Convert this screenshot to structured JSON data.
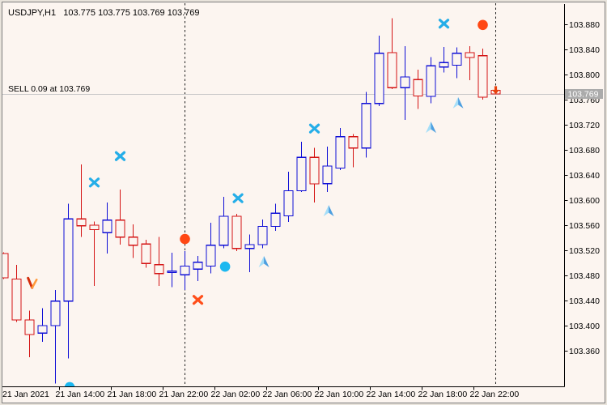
{
  "window": {
    "title_label": "USDJPY,H1   103.775 103.775 103.769 103.769",
    "position_label": "SELL 0.09 at 103.769"
  },
  "colors": {
    "background": "#FCF5F0",
    "chrome": "#E8E3DB",
    "border_dark": "#7E7E7E",
    "bull": "#0E0ED6",
    "bear": "#D41414",
    "axis": "#000000",
    "separator": "#1A1A1A",
    "price_line": "#C8C8C8",
    "price_tag_bg": "#ABABAB",
    "price_tag_text": "#FFFFFF",
    "cross_cyan": "#25AEE8",
    "cross_orange": "#FF4E1A",
    "dot_orange": "#FF4713",
    "dot_cyan": "#1CB8F0",
    "arrow_up_light": "#A5DEF8",
    "arrow_up_dark": "#4D9FE0",
    "sell_v_left": "#D22C0A",
    "sell_v_right": "#FF9A3C",
    "arrow_down_orange": "#E8410C"
  },
  "chart_data": {
    "type": "candlestick",
    "symbol": "USDJPY",
    "timeframe": "H1",
    "current_bar": {
      "open": 103.775,
      "high": 103.775,
      "low": 103.769,
      "close": 103.769
    },
    "price_line": {
      "price": 103.769,
      "label": "103.769"
    },
    "y_axis": {
      "labels": [
        103.88,
        103.84,
        103.8,
        103.76,
        103.72,
        103.68,
        103.64,
        103.6,
        103.56,
        103.52,
        103.48,
        103.44,
        103.4,
        103.36
      ]
    },
    "x_axis": [
      {
        "text": "21 Jan 2021",
        "candle": 0,
        "edge": true
      },
      {
        "text": "21 Jan 14:00",
        "candle": 4
      },
      {
        "text": "21 Jan 18:00",
        "candle": 8
      },
      {
        "text": "21 Jan 22:00",
        "candle": 12
      },
      {
        "text": "22 Jan 02:00",
        "candle": 16
      },
      {
        "text": "22 Jan 06:00",
        "candle": 20
      },
      {
        "text": "22 Jan 10:00",
        "candle": 24
      },
      {
        "text": "22 Jan 14:00",
        "candle": 28
      },
      {
        "text": "22 Jan 18:00",
        "candle": 32
      },
      {
        "text": "22 Jan 22:00",
        "candle": 36
      }
    ],
    "day_separators": [
      {
        "time": "22 Jan 00:00",
        "candle": 14
      },
      {
        "time": "23 Jan 00:00",
        "candle": 38
      }
    ],
    "candles": [
      {
        "t": "21 Jan 10:00",
        "o": 103.515,
        "h": 103.517,
        "l": 103.474,
        "c": 103.476
      },
      {
        "t": "21 Jan 11:00",
        "o": 103.474,
        "h": 103.497,
        "l": 103.406,
        "c": 103.409
      },
      {
        "t": "21 Jan 12:00",
        "o": 103.409,
        "h": 103.424,
        "l": 103.35,
        "c": 103.386
      },
      {
        "t": "21 Jan 13:00",
        "o": 103.388,
        "h": 103.428,
        "l": 103.374,
        "c": 103.4
      },
      {
        "t": "21 Jan 14:00",
        "o": 103.4,
        "h": 103.457,
        "l": 103.308,
        "c": 103.439
      },
      {
        "t": "21 Jan 15:00",
        "o": 103.439,
        "h": 103.594,
        "l": 103.348,
        "c": 103.57
      },
      {
        "t": "21 Jan 16:00",
        "o": 103.57,
        "h": 103.657,
        "l": 103.541,
        "c": 103.559
      },
      {
        "t": "21 Jan 17:00",
        "o": 103.56,
        "h": 103.566,
        "l": 103.463,
        "c": 103.553
      },
      {
        "t": "21 Jan 18:00",
        "o": 103.548,
        "h": 103.596,
        "l": 103.515,
        "c": 103.568
      },
      {
        "t": "21 Jan 19:00",
        "o": 103.568,
        "h": 103.617,
        "l": 103.529,
        "c": 103.541
      },
      {
        "t": "21 Jan 20:00",
        "o": 103.541,
        "h": 103.561,
        "l": 103.508,
        "c": 103.528
      },
      {
        "t": "21 Jan 21:00",
        "o": 103.53,
        "h": 103.537,
        "l": 103.492,
        "c": 103.499
      },
      {
        "t": "21 Jan 22:00",
        "o": 103.497,
        "h": 103.541,
        "l": 103.463,
        "c": 103.483
      },
      {
        "t": "21 Jan 23:00",
        "o": 103.485,
        "h": 103.516,
        "l": 103.461,
        "c": 103.487
      },
      {
        "t": "22 Jan 00:00",
        "o": 103.481,
        "h": 103.519,
        "l": 103.457,
        "c": 103.495
      },
      {
        "t": "22 Jan 01:00",
        "o": 103.49,
        "h": 103.511,
        "l": 103.471,
        "c": 103.501
      },
      {
        "t": "22 Jan 02:00",
        "o": 103.495,
        "h": 103.564,
        "l": 103.483,
        "c": 103.528
      },
      {
        "t": "22 Jan 03:00",
        "o": 103.528,
        "h": 103.605,
        "l": 103.523,
        "c": 103.574
      },
      {
        "t": "22 Jan 04:00",
        "o": 103.574,
        "h": 103.578,
        "l": 103.519,
        "c": 103.523
      },
      {
        "t": "22 Jan 05:00",
        "o": 103.523,
        "h": 103.545,
        "l": 103.485,
        "c": 103.529
      },
      {
        "t": "22 Jan 06:00",
        "o": 103.529,
        "h": 103.569,
        "l": 103.523,
        "c": 103.558
      },
      {
        "t": "22 Jan 07:00",
        "o": 103.558,
        "h": 103.594,
        "l": 103.551,
        "c": 103.579
      },
      {
        "t": "22 Jan 08:00",
        "o": 103.575,
        "h": 103.645,
        "l": 103.565,
        "c": 103.615
      },
      {
        "t": "22 Jan 09:00",
        "o": 103.615,
        "h": 103.693,
        "l": 103.613,
        "c": 103.668
      },
      {
        "t": "22 Jan 10:00",
        "o": 103.668,
        "h": 103.683,
        "l": 103.596,
        "c": 103.626
      },
      {
        "t": "22 Jan 11:00",
        "o": 103.626,
        "h": 103.685,
        "l": 103.613,
        "c": 103.654
      },
      {
        "t": "22 Jan 12:00",
        "o": 103.651,
        "h": 103.715,
        "l": 103.648,
        "c": 103.701
      },
      {
        "t": "22 Jan 13:00",
        "o": 103.701,
        "h": 103.705,
        "l": 103.652,
        "c": 103.683
      },
      {
        "t": "22 Jan 14:00",
        "o": 103.683,
        "h": 103.772,
        "l": 103.668,
        "c": 103.754
      },
      {
        "t": "22 Jan 15:00",
        "o": 103.754,
        "h": 103.862,
        "l": 103.75,
        "c": 103.834
      },
      {
        "t": "22 Jan 16:00",
        "o": 103.835,
        "h": 103.89,
        "l": 103.777,
        "c": 103.779
      },
      {
        "t": "22 Jan 17:00",
        "o": 103.779,
        "h": 103.845,
        "l": 103.728,
        "c": 103.796
      },
      {
        "t": "22 Jan 18:00",
        "o": 103.792,
        "h": 103.808,
        "l": 103.745,
        "c": 103.766
      },
      {
        "t": "22 Jan 19:00",
        "o": 103.765,
        "h": 103.828,
        "l": 103.754,
        "c": 103.814
      },
      {
        "t": "22 Jan 20:00",
        "o": 103.812,
        "h": 103.844,
        "l": 103.803,
        "c": 103.819
      },
      {
        "t": "22 Jan 21:00",
        "o": 103.815,
        "h": 103.843,
        "l": 103.794,
        "c": 103.834
      },
      {
        "t": "22 Jan 22:00",
        "o": 103.835,
        "h": 103.845,
        "l": 103.791,
        "c": 103.827
      },
      {
        "t": "22 Jan 23:00",
        "o": 103.83,
        "h": 103.841,
        "l": 103.76,
        "c": 103.764
      },
      {
        "t": "23 Jan 00:00",
        "o": 103.775,
        "h": 103.775,
        "l": 103.769,
        "c": 103.769
      }
    ],
    "markers": [
      {
        "kind": "v_check",
        "color": "orange",
        "candle": 2.2,
        "price": 103.468
      },
      {
        "kind": "cross",
        "color": "cyan",
        "candle": 7,
        "price": 103.628
      },
      {
        "kind": "cross",
        "color": "cyan",
        "candle": 9,
        "price": 103.67
      },
      {
        "kind": "cross",
        "color": "cyan",
        "candle": 18.1,
        "price": 103.603
      },
      {
        "kind": "cross",
        "color": "cyan",
        "candle": 24,
        "price": 103.714
      },
      {
        "kind": "cross",
        "color": "cyan",
        "candle": 34,
        "price": 103.881
      },
      {
        "kind": "cross",
        "color": "orange",
        "candle": 15,
        "price": 103.441
      },
      {
        "kind": "dot",
        "color": "orange",
        "candle": 14,
        "price": 103.538
      },
      {
        "kind": "dot",
        "color": "orange",
        "candle": 37,
        "price": 103.879
      },
      {
        "kind": "dot",
        "color": "cyan",
        "candle": 17.1,
        "price": 103.494
      },
      {
        "kind": "dot",
        "color": "cyan",
        "candle": 5.1,
        "price": 103.302
      },
      {
        "kind": "arrow_up",
        "color": "cyan",
        "candle": 20.1,
        "price": 103.502
      },
      {
        "kind": "arrow_up",
        "color": "cyan",
        "candle": 25.1,
        "price": 103.583
      },
      {
        "kind": "arrow_up",
        "color": "cyan",
        "candle": 33,
        "price": 103.716
      },
      {
        "kind": "arrow_up",
        "color": "cyan",
        "candle": 35.1,
        "price": 103.755
      },
      {
        "kind": "arrow_down",
        "color": "orange",
        "candle": 38,
        "price": 103.775
      }
    ]
  }
}
